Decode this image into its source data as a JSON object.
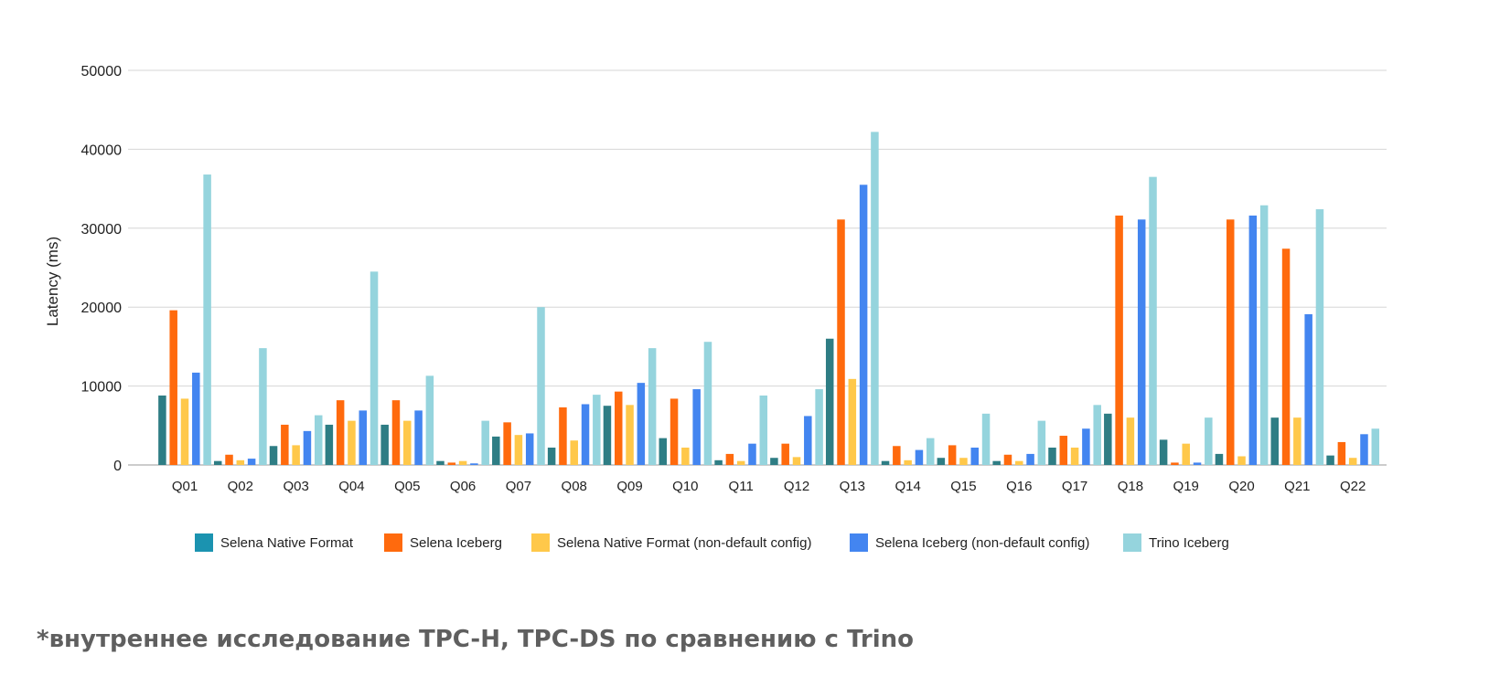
{
  "chart_data": {
    "type": "bar",
    "ylabel": "Latency (ms)",
    "ylim": [
      0,
      50000
    ],
    "yticks": [
      0,
      10000,
      20000,
      30000,
      40000,
      50000
    ],
    "grid": true,
    "legend_position": "bottom",
    "categories": [
      "Q01",
      "Q02",
      "Q03",
      "Q04",
      "Q05",
      "Q06",
      "Q07",
      "Q08",
      "Q09",
      "Q10",
      "Q11",
      "Q12",
      "Q13",
      "Q14",
      "Q15",
      "Q16",
      "Q17",
      "Q18",
      "Q19",
      "Q20",
      "Q21",
      "Q22"
    ],
    "series": [
      {
        "name": "Selena Native Format",
        "color": "#2e7d84",
        "legend_color": "#1b93b0",
        "values": [
          8800,
          500,
          2400,
          5100,
          5100,
          500,
          3600,
          2200,
          7500,
          3400,
          600,
          900,
          16000,
          500,
          900,
          500,
          2200,
          6500,
          3200,
          1400,
          6000,
          1200
        ]
      },
      {
        "name": "Selena Iceberg",
        "color": "#ff6a0d",
        "values": [
          19600,
          1300,
          5100,
          8200,
          8200,
          300,
          5400,
          7300,
          9300,
          8400,
          1400,
          2700,
          31100,
          2400,
          2500,
          1300,
          3700,
          31600,
          300,
          31100,
          27400,
          2900
        ]
      },
      {
        "name": "Selena Native Format (non-default config)",
        "color": "#ffc84a",
        "values": [
          8400,
          600,
          2500,
          5600,
          5600,
          500,
          3800,
          3100,
          7600,
          2200,
          500,
          1000,
          10900,
          600,
          900,
          500,
          2200,
          6000,
          2700,
          1100,
          6000,
          900
        ]
      },
      {
        "name": "Selena Iceberg (non-default config)",
        "color": "#4385f0",
        "values": [
          11700,
          800,
          4300,
          6900,
          6900,
          200,
          4000,
          7700,
          10400,
          9600,
          2700,
          6200,
          35500,
          1900,
          2200,
          1400,
          4600,
          31100,
          300,
          31600,
          19100,
          3900
        ]
      },
      {
        "name": "Trino Iceberg",
        "color": "#95d4dd",
        "values": [
          36800,
          14800,
          6300,
          24500,
          11300,
          5600,
          20000,
          8900,
          14800,
          15600,
          8800,
          9600,
          42200,
          3400,
          6500,
          5600,
          7600,
          36500,
          6000,
          32900,
          32400,
          4600
        ]
      }
    ]
  },
  "footnote": "*внутреннее исследование TPC-H, TPC-DS по сравнению с Trino"
}
